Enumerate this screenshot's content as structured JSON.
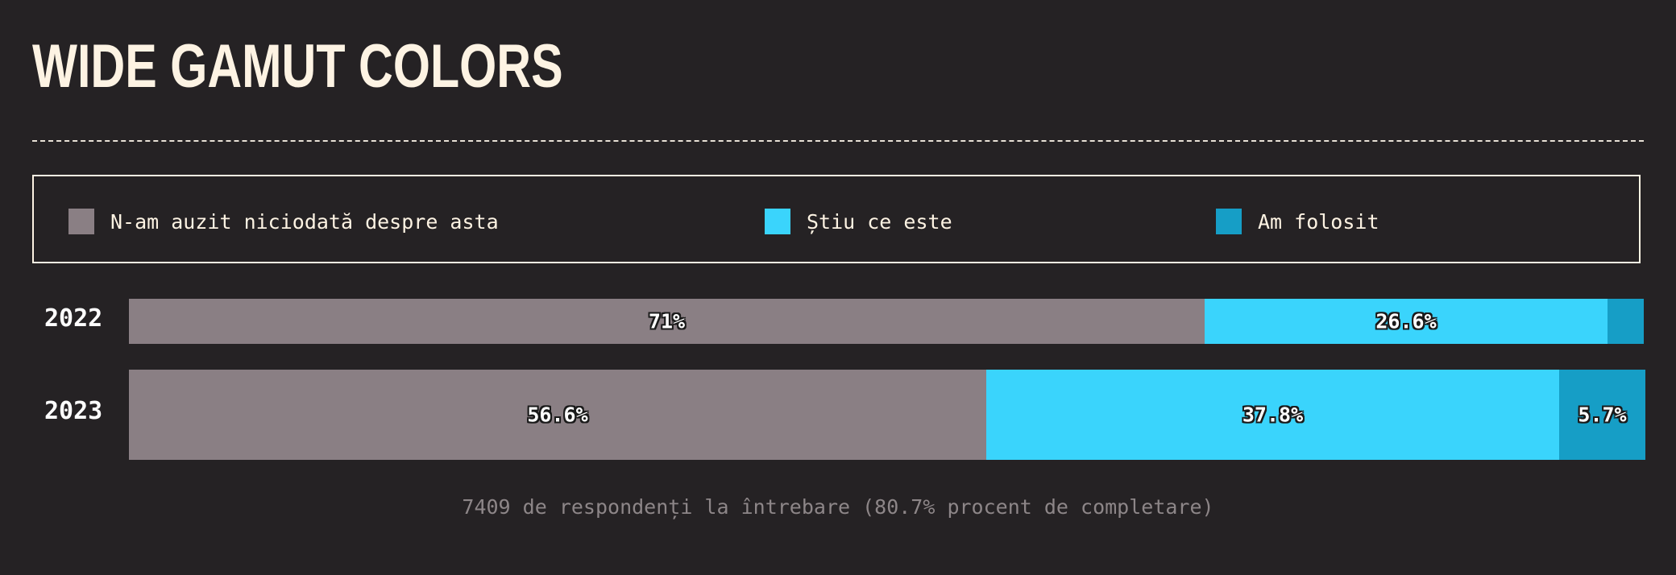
{
  "page": {
    "title": "WIDE GAMUT COLORS",
    "footnote": "7409 de respondenți la întrebare (80.7% procent de completare)"
  },
  "colors": {
    "background": "#252224",
    "title": "#fdf3e3",
    "never_heard": "#8a7f84",
    "know_it": "#3ad4fc",
    "used_it": "#169ec6"
  },
  "chart_data": {
    "type": "bar",
    "orientation": "horizontal",
    "stacked": true,
    "title": "WIDE GAMUT COLORS",
    "categories": [
      "2022",
      "2023"
    ],
    "series": [
      {
        "name": "N-am auzit niciodată despre asta",
        "values": [
          71,
          56.6
        ],
        "labels": [
          "71%",
          "56.6%"
        ],
        "color": "#8a7f84"
      },
      {
        "name": "Știu ce este",
        "values": [
          26.6,
          37.8
        ],
        "labels": [
          "26.6%",
          "37.8%"
        ],
        "color": "#3ad4fc"
      },
      {
        "name": "Am folosit",
        "values": [
          2.4,
          5.7
        ],
        "labels": [
          "",
          "5.7%"
        ],
        "color": "#169ec6"
      }
    ],
    "xlim": [
      0,
      100
    ],
    "legend_position": "top",
    "grid": false
  }
}
